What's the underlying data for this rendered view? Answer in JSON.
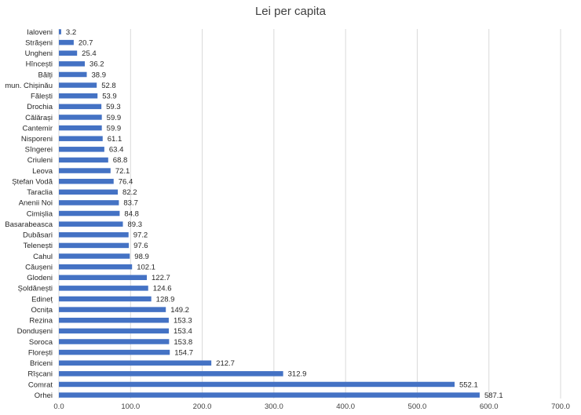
{
  "chart_data": {
    "type": "bar",
    "orientation": "horizontal",
    "title": "Lei per capita",
    "xlabel": "",
    "ylabel": "",
    "xlim": [
      0,
      700
    ],
    "x_ticks": [
      "0.0",
      "100.0",
      "200.0",
      "300.0",
      "400.0",
      "500.0",
      "600.0",
      "700.0"
    ],
    "grid": "vertical",
    "legend": "none",
    "bar_color": "#4472C4",
    "grid_color": "#D9D9D9",
    "categories": [
      "Ialoveni",
      "Strășeni",
      "Ungheni",
      "Hîncești",
      "Bălți",
      "mun. Chișinău",
      "Fălești",
      "Drochia",
      "Călărași",
      "Cantemir",
      "Nisporeni",
      "Sîngerei",
      "Criuleni",
      "Leova",
      "Ștefan Vodă",
      "Taraclia",
      "Anenii Noi",
      "Cimișlia",
      "Basarabeasca",
      "Dubăsari",
      "Telenești",
      "Cahul",
      "Căușeni",
      "Glodeni",
      "Șoldănești",
      "Edineț",
      "Ocnița",
      "Rezina",
      "Dondușeni",
      "Soroca",
      "Florești",
      "Briceni",
      "Rîșcani",
      "Comrat",
      "Orhei"
    ],
    "values": [
      3.2,
      20.7,
      25.4,
      36.2,
      38.9,
      52.8,
      53.9,
      59.3,
      59.9,
      59.9,
      61.1,
      63.4,
      68.8,
      72.1,
      76.4,
      82.2,
      83.7,
      84.8,
      89.3,
      97.2,
      97.6,
      98.9,
      102.1,
      122.7,
      124.6,
      128.9,
      149.2,
      153.3,
      153.4,
      153.8,
      154.7,
      212.7,
      312.9,
      552.1,
      587.1
    ],
    "value_labels": [
      "3.2",
      "20.7",
      "25.4",
      "36.2",
      "38.9",
      "52.8",
      "53.9",
      "59.3",
      "59.9",
      "59.9",
      "61.1",
      "63.4",
      "68.8",
      "72.1",
      "76.4",
      "82.2",
      "83.7",
      "84.8",
      "89.3",
      "97.2",
      "97.6",
      "98.9",
      "102.1",
      "122.7",
      "124.6",
      "128.9",
      "149.2",
      "153.3",
      "153.4",
      "153.8",
      "154.7",
      "212.7",
      "312.9",
      "552.1",
      "587.1"
    ]
  }
}
